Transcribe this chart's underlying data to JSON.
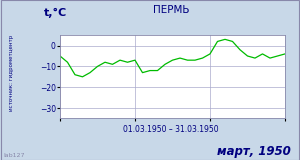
{
  "title": "ПЕРМЬ",
  "ylabel": "t,°C",
  "xlabel": "01.03.1950 – 31.03.1950",
  "footer": "март, 1950",
  "source_label": "источник: гидрометцентр",
  "lab_label": "lab127",
  "ylim": [
    -35,
    5
  ],
  "yticks": [
    0,
    -10,
    -20,
    -30
  ],
  "xlim": [
    1,
    31
  ],
  "xticks": [
    1,
    11,
    21,
    31
  ],
  "days": [
    1,
    2,
    3,
    4,
    5,
    6,
    7,
    8,
    9,
    10,
    11,
    12,
    13,
    14,
    15,
    16,
    17,
    18,
    19,
    20,
    21,
    22,
    23,
    24,
    25,
    26,
    27,
    28,
    29,
    30,
    31
  ],
  "temps": [
    -5,
    -8,
    -14,
    -15,
    -13,
    -10,
    -8,
    -9,
    -7,
    -8,
    -7,
    -13,
    -12,
    -12,
    -9,
    -7,
    -6,
    -7,
    -7,
    -6,
    -4,
    2,
    3,
    2,
    -2,
    -5,
    -6,
    -4,
    -6,
    -5,
    -4
  ],
  "line_color": "#00bb00",
  "plot_bg": "#ffffff",
  "outer_bg": "#c8d8e8",
  "title_color": "#000080",
  "label_color": "#000080",
  "tick_color": "#000080",
  "footer_color": "#000080",
  "source_color": "#000080",
  "lab_color": "#8888aa",
  "grid_color": "#aaaacc",
  "border_color": "#8888aa",
  "figsize": [
    3.0,
    1.6
  ],
  "dpi": 100
}
